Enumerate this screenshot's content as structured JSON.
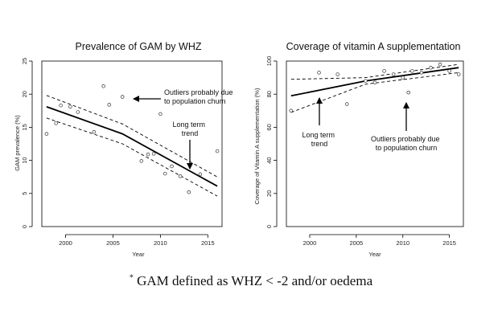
{
  "chart_data": [
    {
      "type": "scatter",
      "title": "Prevalence of GAM by WHZ",
      "xlabel": "Year",
      "ylabel": "GAM prevalence (%)",
      "xlim": [
        1997.5,
        2016.5
      ],
      "ylim": [
        0,
        25
      ],
      "xticks": [
        2000,
        2005,
        2010,
        2015
      ],
      "yticks": [
        0,
        5,
        10,
        15,
        20,
        25
      ],
      "points": [
        {
          "x": 1998,
          "y": 14.0
        },
        {
          "x": 1999,
          "y": 15.6
        },
        {
          "x": 1999.5,
          "y": 18.3
        },
        {
          "x": 2000.5,
          "y": 18.1
        },
        {
          "x": 2001.3,
          "y": 17.3
        },
        {
          "x": 2003,
          "y": 14.3
        },
        {
          "x": 2004,
          "y": 21.2
        },
        {
          "x": 2004.6,
          "y": 18.4
        },
        {
          "x": 2006,
          "y": 19.6
        },
        {
          "x": 2008,
          "y": 9.9
        },
        {
          "x": 2008.7,
          "y": 10.9
        },
        {
          "x": 2009.3,
          "y": 11.0
        },
        {
          "x": 2010,
          "y": 17.0
        },
        {
          "x": 2010.5,
          "y": 8.0
        },
        {
          "x": 2011.2,
          "y": 9.1
        },
        {
          "x": 2012.1,
          "y": 7.6
        },
        {
          "x": 2013,
          "y": 5.2
        },
        {
          "x": 2014.2,
          "y": 7.9
        },
        {
          "x": 2016,
          "y": 11.4
        }
      ],
      "series": [
        {
          "name": "trend",
          "style": "solid",
          "x": [
            1998,
            2006,
            2016
          ],
          "y": [
            18.1,
            14.0,
            6.1
          ]
        },
        {
          "name": "upper band",
          "style": "dashed",
          "x": [
            1998,
            2006,
            2016
          ],
          "y": [
            19.8,
            15.5,
            7.5
          ]
        },
        {
          "name": "lower band",
          "style": "dashed",
          "x": [
            1998,
            2006,
            2016
          ],
          "y": [
            16.4,
            12.5,
            4.6
          ]
        }
      ],
      "annotations": [
        {
          "lines": [
            "Outliers probably due",
            "to population churn"
          ],
          "arrow": "left"
        },
        {
          "lines": [
            "Long term",
            "trend"
          ],
          "arrow": "down"
        }
      ]
    },
    {
      "type": "scatter",
      "title": "Coverage of vitamin A supplementation",
      "xlabel": "Year",
      "ylabel": "Coverage of Vitamin A supplementation (%)",
      "xlim": [
        1997.5,
        2016.5
      ],
      "ylim": [
        0,
        100
      ],
      "xticks": [
        2000,
        2005,
        2010,
        2015
      ],
      "yticks": [
        0,
        20,
        40,
        60,
        80,
        100
      ],
      "points": [
        {
          "x": 1998,
          "y": 70
        },
        {
          "x": 2001,
          "y": 93
        },
        {
          "x": 2003,
          "y": 92
        },
        {
          "x": 2004,
          "y": 74
        },
        {
          "x": 2006,
          "y": 88
        },
        {
          "x": 2007,
          "y": 87
        },
        {
          "x": 2008,
          "y": 94
        },
        {
          "x": 2009,
          "y": 92
        },
        {
          "x": 2010,
          "y": 90
        },
        {
          "x": 2010.6,
          "y": 81
        },
        {
          "x": 2011,
          "y": 94
        },
        {
          "x": 2012,
          "y": 93
        },
        {
          "x": 2013,
          "y": 96
        },
        {
          "x": 2014,
          "y": 98
        },
        {
          "x": 2015,
          "y": 94
        },
        {
          "x": 2016,
          "y": 92
        }
      ],
      "series": [
        {
          "name": "trend",
          "style": "solid",
          "x": [
            1998,
            2006,
            2016
          ],
          "y": [
            79,
            88,
            96
          ]
        },
        {
          "name": "upper band",
          "style": "dashed",
          "x": [
            1998,
            2006,
            2016
          ],
          "y": [
            89,
            90,
            98
          ]
        },
        {
          "name": "lower band",
          "style": "dashed",
          "x": [
            1998,
            2006,
            2016
          ],
          "y": [
            69,
            86,
            93
          ]
        }
      ],
      "annotations": [
        {
          "lines": [
            "Long term",
            "trend"
          ],
          "arrow": "up"
        },
        {
          "lines": [
            "Outliers probably due",
            "to population churn"
          ],
          "arrow": "up"
        }
      ]
    }
  ],
  "footnote": {
    "marker": "*",
    "text": "GAM defined as WHZ < -2 and/or oedema"
  }
}
